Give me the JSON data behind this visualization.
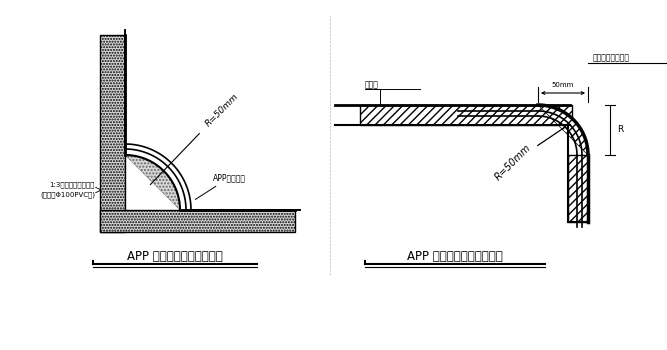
{
  "bg_color": "#ffffff",
  "title1": "APP 防水卷材基层阴角半径",
  "title2": "APP 防水卷材基层阳角半径",
  "label_radius1": "R=50mm",
  "label_radius2": "R=50mm",
  "label_app1": "APP防水卷材",
  "label_left1": "1:3水泥砂浆压实抹灰\n(用直径Φ100PVC管)",
  "label_fangshui": "防水层",
  "label_shacheng": "此部分分用砂浆抹",
  "label_r": "R",
  "line_color": "#000000",
  "text_color": "#000000"
}
